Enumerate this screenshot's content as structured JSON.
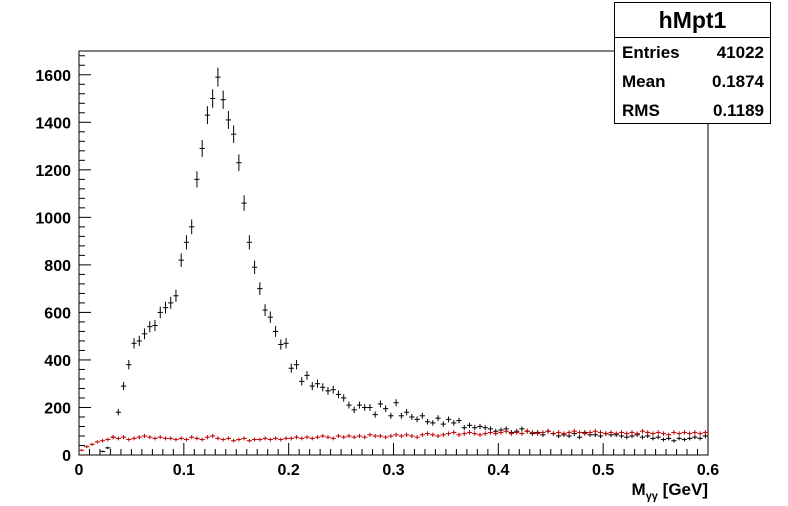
{
  "stats": {
    "title": "hMpt1",
    "rows": [
      {
        "key": "Entries",
        "value": "41022"
      },
      {
        "key": "Mean",
        "value": "0.1874"
      },
      {
        "key": "RMS",
        "value": "0.1189"
      }
    ]
  },
  "chart_data": {
    "type": "scatter",
    "title": "",
    "xlabel_main": "M",
    "xlabel_sub": "γγ",
    "xlabel_unit": " [GeV]",
    "ylabel": "",
    "xlim": [
      0,
      0.6
    ],
    "ylim": [
      0,
      1700
    ],
    "xticks": [
      0,
      0.1,
      0.2,
      0.3,
      0.4,
      0.5,
      0.6
    ],
    "xtick_labels": [
      "0",
      "0.1",
      "0.2",
      "0.3",
      "0.4",
      "0.5",
      "0.6"
    ],
    "yticks": [
      0,
      200,
      400,
      600,
      800,
      1000,
      1200,
      1400,
      1600
    ],
    "ytick_labels": [
      "0",
      "200",
      "400",
      "600",
      "800",
      "1000",
      "1200",
      "1400",
      "1600"
    ],
    "grid": false,
    "series": [
      {
        "color": "#000000",
        "x": [
          0.0025,
          0.0075,
          0.0125,
          0.0175,
          0.0225,
          0.0275,
          0.0325,
          0.0375,
          0.0425,
          0.0475,
          0.0525,
          0.0575,
          0.0625,
          0.0675,
          0.0725,
          0.0775,
          0.0825,
          0.0875,
          0.0925,
          0.0975,
          0.1025,
          0.1075,
          0.1125,
          0.1175,
          0.1225,
          0.1275,
          0.1325,
          0.1375,
          0.1425,
          0.1475,
          0.1525,
          0.1575,
          0.1625,
          0.1675,
          0.1725,
          0.1775,
          0.1825,
          0.1875,
          0.1925,
          0.1975,
          0.2025,
          0.2075,
          0.2125,
          0.2175,
          0.2225,
          0.2275,
          0.2325,
          0.2375,
          0.2425,
          0.2475,
          0.2525,
          0.2575,
          0.2625,
          0.2675,
          0.2725,
          0.2775,
          0.2825,
          0.2875,
          0.2925,
          0.2975,
          0.3025,
          0.3075,
          0.3125,
          0.3175,
          0.3225,
          0.3275,
          0.3325,
          0.3375,
          0.3425,
          0.3475,
          0.3525,
          0.3575,
          0.3625,
          0.3675,
          0.3725,
          0.3775,
          0.3825,
          0.3875,
          0.3925,
          0.3975,
          0.4025,
          0.4075,
          0.4125,
          0.4175,
          0.4225,
          0.4275,
          0.4325,
          0.4375,
          0.4425,
          0.4475,
          0.4525,
          0.4575,
          0.4625,
          0.4675,
          0.4725,
          0.4775,
          0.4825,
          0.4875,
          0.4925,
          0.4975,
          0.5025,
          0.5075,
          0.5125,
          0.5175,
          0.5225,
          0.5275,
          0.5325,
          0.5375,
          0.5425,
          0.5475,
          0.5525,
          0.5575,
          0.5625,
          0.5675,
          0.5725,
          0.5775,
          0.5825,
          0.5875,
          0.5925,
          0.5975
        ],
        "y": [
          0,
          0,
          0,
          0,
          15,
          30,
          75,
          180,
          290,
          380,
          470,
          480,
          510,
          540,
          545,
          600,
          620,
          640,
          670,
          820,
          895,
          960,
          1160,
          1290,
          1430,
          1500,
          1590,
          1495,
          1410,
          1350,
          1230,
          1060,
          895,
          790,
          700,
          610,
          580,
          520,
          465,
          470,
          365,
          380,
          310,
          335,
          290,
          300,
          285,
          270,
          275,
          255,
          240,
          210,
          190,
          210,
          200,
          200,
          170,
          215,
          195,
          165,
          220,
          165,
          180,
          160,
          150,
          165,
          140,
          135,
          155,
          130,
          150,
          135,
          145,
          115,
          125,
          115,
          120,
          115,
          110,
          100,
          105,
          110,
          95,
          100,
          110,
          100,
          90,
          95,
          85,
          100,
          90,
          80,
          85,
          80,
          90,
          75,
          95,
          85,
          85,
          80,
          90,
          85,
          85,
          80,
          75,
          80,
          85,
          75,
          80,
          70,
          75,
          65,
          70,
          60,
          70,
          65,
          70,
          75,
          70,
          80
        ]
      },
      {
        "color": "#c00000",
        "x": [
          0.0025,
          0.0075,
          0.0125,
          0.0175,
          0.0225,
          0.0275,
          0.0325,
          0.0375,
          0.0425,
          0.0475,
          0.0525,
          0.0575,
          0.0625,
          0.0675,
          0.0725,
          0.0775,
          0.0825,
          0.0875,
          0.0925,
          0.0975,
          0.1025,
          0.1075,
          0.1125,
          0.1175,
          0.1225,
          0.1275,
          0.1325,
          0.1375,
          0.1425,
          0.1475,
          0.1525,
          0.1575,
          0.1625,
          0.1675,
          0.1725,
          0.1775,
          0.1825,
          0.1875,
          0.1925,
          0.1975,
          0.2025,
          0.2075,
          0.2125,
          0.2175,
          0.2225,
          0.2275,
          0.2325,
          0.2375,
          0.2425,
          0.2475,
          0.2525,
          0.2575,
          0.2625,
          0.2675,
          0.2725,
          0.2775,
          0.2825,
          0.2875,
          0.2925,
          0.2975,
          0.3025,
          0.3075,
          0.3125,
          0.3175,
          0.3225,
          0.3275,
          0.3325,
          0.3375,
          0.3425,
          0.3475,
          0.3525,
          0.3575,
          0.3625,
          0.3675,
          0.3725,
          0.3775,
          0.3825,
          0.3875,
          0.3925,
          0.3975,
          0.4025,
          0.4075,
          0.4125,
          0.4175,
          0.4225,
          0.4275,
          0.4325,
          0.4375,
          0.4425,
          0.4475,
          0.4525,
          0.4575,
          0.4625,
          0.4675,
          0.4725,
          0.4775,
          0.4825,
          0.4875,
          0.4925,
          0.4975,
          0.5025,
          0.5075,
          0.5125,
          0.5175,
          0.5225,
          0.5275,
          0.5325,
          0.5375,
          0.5425,
          0.5475,
          0.5525,
          0.5575,
          0.5625,
          0.5675,
          0.5725,
          0.5775,
          0.5825,
          0.5875,
          0.5925,
          0.5975
        ],
        "y": [
          20,
          35,
          45,
          55,
          60,
          65,
          75,
          70,
          75,
          65,
          70,
          75,
          80,
          75,
          70,
          75,
          70,
          70,
          65,
          70,
          65,
          75,
          70,
          65,
          75,
          80,
          70,
          65,
          70,
          60,
          65,
          70,
          60,
          65,
          65,
          70,
          65,
          70,
          65,
          70,
          70,
          75,
          70,
          75,
          70,
          75,
          80,
          75,
          70,
          80,
          75,
          80,
          75,
          80,
          75,
          85,
          80,
          80,
          75,
          80,
          85,
          80,
          85,
          80,
          75,
          85,
          90,
          85,
          80,
          85,
          90,
          95,
          85,
          90,
          95,
          90,
          85,
          90,
          95,
          90,
          95,
          100,
          90,
          95,
          90,
          100,
          95,
          90,
          95,
          100,
          90,
          95,
          90,
          95,
          100,
          95,
          90,
          95,
          100,
          95,
          90,
          95,
          90,
          95,
          90,
          95,
          90,
          100,
          95,
          90,
          95,
          90,
          85,
          95,
          90,
          95,
          90,
          95,
          90,
          95
        ]
      }
    ]
  }
}
